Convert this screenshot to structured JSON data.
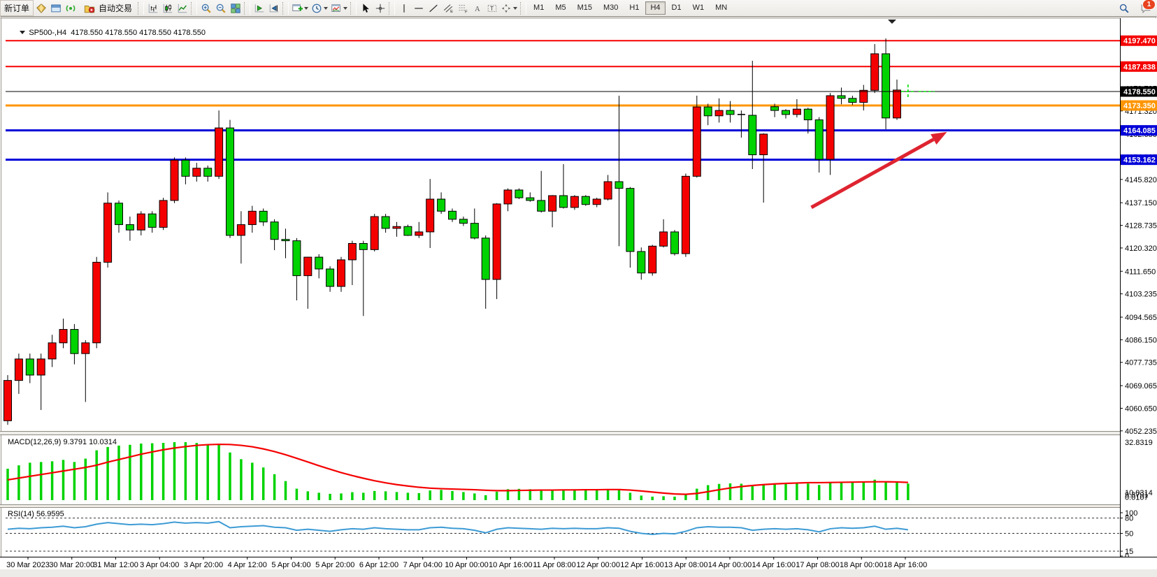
{
  "toolbar": {
    "new_order": "新订单",
    "auto_trading": "自动交易",
    "timeframes": [
      "M1",
      "M5",
      "M15",
      "M30",
      "H1",
      "H4",
      "D1",
      "W1",
      "MN"
    ],
    "active_timeframe": "H4",
    "notification_badge": "1",
    "icon_names": [
      "trade-watch-icon",
      "terminal-icon",
      "signal-icon",
      "chart-bars-icon",
      "chart-candles-icon",
      "chart-line-icon",
      "zoom-in-icon",
      "zoom-out-icon",
      "tile-windows-icon",
      "auto-scroll-icon",
      "chart-shift-icon",
      "new-chart-dropdown",
      "periods-dropdown",
      "indicators-dropdown",
      "cursor-icon",
      "crosshair-icon",
      "vertical-line-icon",
      "horizontal-line-icon",
      "trendline-icon",
      "channel-icon",
      "fibonacci-icon",
      "text-icon",
      "label-icon",
      "shapes-dropdown",
      "search-icon",
      "chat-icon"
    ]
  },
  "chart": {
    "symbol_ohlc_line": "SP500-,H4  4178.550 4178.550 4178.550 4178.550",
    "axis_labels": [
      "4196.565",
      "4188.150",
      "4179.735",
      "4171.320",
      "4162.650",
      "4154.235",
      "4145.820",
      "4137.150",
      "4128.735",
      "4120.320",
      "4111.650",
      "4103.235",
      "4094.565",
      "4086.150",
      "4077.735",
      "4069.065",
      "4060.650",
      "4052.235"
    ],
    "price_badges": [
      {
        "text": "4197.470",
        "price": 4197.47,
        "color": "#f50000"
      },
      {
        "text": "4187.838",
        "price": 4187.838,
        "color": "#f50000"
      },
      {
        "text": "4178.550",
        "price": 4178.55,
        "color": "#000000"
      },
      {
        "text": "4173.350",
        "price": 4173.35,
        "color": "#ff9500"
      },
      {
        "text": "4164.085",
        "price": 4164.085,
        "color": "#0000d8"
      },
      {
        "text": "4153.162",
        "price": 4153.162,
        "color": "#0000d8"
      }
    ]
  },
  "chart_data": {
    "type": "candlestick",
    "symbol": "SP500-",
    "timeframe": "H4",
    "color_convention": "red = bullish, green = bearish",
    "ylim": [
      4048,
      4205
    ],
    "x_labels": [
      "30 Mar 2023",
      "30 Mar 20:00",
      "31 Mar 12:00",
      "3 Apr 04:00",
      "3 Apr 20:00",
      "4 Apr 12:00",
      "5 Apr 04:00",
      "5 Apr 20:00",
      "6 Apr 12:00",
      "7 Apr 04:00",
      "10 Apr 00:00",
      "10 Apr 16:00",
      "11 Apr 08:00",
      "12 Apr 00:00",
      "12 Apr 16:00",
      "13 Apr 08:00",
      "14 Apr 00:00",
      "14 Apr 16:00",
      "17 Apr 08:00",
      "18 Apr 00:00",
      "18 Apr 16:00"
    ],
    "candles_ohlc": [
      [
        4056,
        4073,
        4054.5,
        4071
      ],
      [
        4071,
        4081,
        4066,
        4079
      ],
      [
        4079,
        4081,
        4070,
        4073
      ],
      [
        4073,
        4081,
        4060,
        4079
      ],
      [
        4079,
        4088,
        4076,
        4085
      ],
      [
        4085,
        4094,
        4083,
        4090
      ],
      [
        4090,
        4092,
        4077,
        4081
      ],
      [
        4081,
        4086,
        4063,
        4085
      ],
      [
        4085,
        4117,
        4083,
        4115
      ],
      [
        4115,
        4141,
        4113,
        4137
      ],
      [
        4137,
        4138,
        4126,
        4129
      ],
      [
        4129,
        4132,
        4123,
        4127
      ],
      [
        4127,
        4134,
        4125,
        4133
      ],
      [
        4133,
        4134,
        4126,
        4128
      ],
      [
        4128,
        4139,
        4127,
        4138
      ],
      [
        4138,
        4154,
        4137,
        4153
      ],
      [
        4153,
        4154,
        4144,
        4147
      ],
      [
        4147,
        4152,
        4145,
        4150
      ],
      [
        4150,
        4151,
        4145,
        4147
      ],
      [
        4147,
        4171.5,
        4146,
        4165
      ],
      [
        4165,
        4168,
        4124,
        4125
      ],
      [
        4125,
        4134,
        4114.5,
        4129
      ],
      [
        4129,
        4136,
        4126,
        4134
      ],
      [
        4134,
        4135,
        4128.5,
        4130
      ],
      [
        4130,
        4131,
        4119.5,
        4123.5
      ],
      [
        4123.5,
        4127.5,
        4116.5,
        4123
      ],
      [
        4123,
        4124,
        4100.8,
        4110
      ],
      [
        4110,
        4117,
        4097.7,
        4116.9
      ],
      [
        4116.9,
        4118,
        4109,
        4112.5
      ],
      [
        4112.5,
        4113.5,
        4104,
        4106
      ],
      [
        4106,
        4117,
        4104,
        4115.9
      ],
      [
        4115.9,
        4123,
        4106.5,
        4122
      ],
      [
        4122,
        4123,
        4095,
        4119.7
      ],
      [
        4119.7,
        4133,
        4119,
        4132
      ],
      [
        4132,
        4133,
        4126,
        4127.6
      ],
      [
        4127.6,
        4130,
        4124.5,
        4128.3
      ],
      [
        4128.3,
        4129,
        4124.8,
        4125
      ],
      [
        4125,
        4130,
        4124,
        4126.3
      ],
      [
        4126.3,
        4146,
        4120.3,
        4138.5
      ],
      [
        4138.5,
        4141,
        4133,
        4134
      ],
      [
        4134,
        4135,
        4130,
        4131
      ],
      [
        4131,
        4132,
        4128.5,
        4129.5
      ],
      [
        4129.5,
        4135,
        4123.5,
        4124
      ],
      [
        4124,
        4125,
        4097.7,
        4108.6
      ],
      [
        4108.6,
        4137,
        4101.3,
        4136.7
      ],
      [
        4136.7,
        4142.5,
        4134,
        4141.9
      ],
      [
        4141.9,
        4142.5,
        4138.5,
        4139
      ],
      [
        4139,
        4141,
        4137.5,
        4138
      ],
      [
        4138,
        4149,
        4133.5,
        4134
      ],
      [
        4134,
        4140,
        4128,
        4139.8
      ],
      [
        4139.8,
        4151.5,
        4135,
        4135.4
      ],
      [
        4135.4,
        4140,
        4134.5,
        4139.5
      ],
      [
        4139.5,
        4140,
        4136,
        4136.5
      ],
      [
        4136.5,
        4139,
        4135.5,
        4138.5
      ],
      [
        4138.5,
        4147.5,
        4138,
        4145
      ],
      [
        4145,
        4177,
        4121,
        4142.5
      ],
      [
        4142.5,
        4143,
        4113,
        4119
      ],
      [
        4119,
        4120.5,
        4108.5,
        4111
      ],
      [
        4111,
        4121.5,
        4110,
        4121
      ],
      [
        4121,
        4131,
        4120.5,
        4126.3
      ],
      [
        4126.3,
        4127,
        4117.5,
        4118.2
      ],
      [
        4118.2,
        4148,
        4117,
        4147
      ],
      [
        4147,
        4177,
        4146.5,
        4172.8
      ],
      [
        4172.8,
        4174,
        4166,
        4169.5
      ],
      [
        4169.5,
        4176,
        4167,
        4171.5
      ],
      [
        4171.5,
        4175,
        4167,
        4170
      ],
      [
        4170,
        4171.5,
        4161.4,
        4169.7
      ],
      [
        4169.7,
        4190,
        4149.7,
        4155
      ],
      [
        4155,
        4163,
        4137.2,
        4162.7
      ],
      [
        4172.9,
        4174,
        4169,
        4171.5
      ],
      [
        4171.5,
        4172,
        4168.5,
        4170
      ],
      [
        4170,
        4175.7,
        4168.9,
        4172
      ],
      [
        4172,
        4172.5,
        4162.9,
        4168
      ],
      [
        4168,
        4169,
        4148.4,
        4153.3
      ],
      [
        4153.3,
        4178,
        4147.5,
        4177
      ],
      [
        4177,
        4180,
        4173.8,
        4176
      ],
      [
        4176,
        4177,
        4173.5,
        4174.5
      ],
      [
        4174.5,
        4181,
        4171.5,
        4179
      ],
      [
        4179,
        4196.2,
        4178,
        4192.6
      ],
      [
        4192.6,
        4198.3,
        4164.5,
        4168.7
      ],
      [
        4168.7,
        4183,
        4168,
        4179.1
      ],
      [
        4178.5,
        4179.5,
        4177.5,
        4178.55
      ]
    ],
    "hlines": [
      {
        "price": 4197.47,
        "color": "#f50000",
        "width": 2
      },
      {
        "price": 4187.838,
        "color": "#f50000",
        "width": 2
      },
      {
        "price": 4178.55,
        "color": "#000000",
        "width": 1
      },
      {
        "price": 4173.35,
        "color": "#ff9500",
        "width": 3
      },
      {
        "price": 4164.085,
        "color": "#0000d8",
        "width": 3
      },
      {
        "price": 4153.162,
        "color": "#0000d8",
        "width": 3
      }
    ],
    "trend_arrow": {
      "from": {
        "bar": 72.3,
        "price": 4135.4
      },
      "to": {
        "bar": 84.5,
        "price": 4163.5
      },
      "color": "#de2430"
    },
    "current_bar_marker": {
      "bar": 81,
      "price": 4178.55,
      "color": "#00dd00"
    },
    "indicators": {
      "macd": {
        "label_text": "MACD(12,26,9) 9.3791 10.0314",
        "params": "12,26,9",
        "main_value": "9.3791",
        "signal_value": "10.0314",
        "axis_max_label": "32.8319",
        "axis_bottom_labels": [
          "10.0314",
          "9.3791",
          "0.0107"
        ],
        "histogram_color": "#00d300",
        "signal_color": "#f50000",
        "histogram": [
          17.8,
          19.7,
          21.2,
          21.6,
          22.0,
          22.8,
          21.6,
          23.5,
          28.2,
          30.1,
          30.9,
          31.3,
          32.0,
          32.2,
          32.4,
          32.8,
          32.8,
          32.4,
          31.5,
          32.0,
          27.0,
          23.2,
          21.2,
          18.5,
          14.7,
          10.8,
          6.5,
          5.0,
          4.2,
          3.6,
          3.8,
          4.5,
          4.2,
          5.2,
          5.0,
          4.6,
          4.2,
          4.0,
          5.5,
          5.8,
          5.2,
          4.6,
          3.8,
          2.8,
          4.8,
          6.2,
          6.4,
          6.2,
          6.0,
          5.8,
          6.0,
          6.2,
          6.0,
          5.8,
          6.2,
          6.0,
          4.2,
          2.6,
          2.0,
          2.2,
          2.0,
          3.2,
          6.5,
          8.5,
          9.2,
          9.5,
          9.3,
          8.6,
          8.8,
          9.4,
          9.6,
          9.8,
          9.4,
          8.6,
          9.8,
          10.4,
          10.5,
          10.6,
          11.6,
          10.4,
          10.1,
          9.38
        ],
        "signal": [
          11.5,
          12.5,
          13.5,
          14.5,
          15.5,
          16.5,
          17.5,
          18.5,
          19.8,
          21.5,
          23.0,
          24.5,
          26.0,
          27.3,
          28.5,
          29.5,
          30.3,
          31.0,
          31.4,
          31.6,
          31.5,
          31.0,
          30.2,
          29.0,
          27.5,
          25.7,
          23.7,
          21.6,
          19.5,
          17.5,
          15.6,
          13.9,
          12.4,
          11.0,
          9.8,
          8.8,
          8.0,
          7.3,
          6.8,
          6.5,
          6.3,
          6.1,
          5.9,
          5.6,
          5.4,
          5.4,
          5.5,
          5.6,
          5.7,
          5.7,
          5.8,
          5.8,
          5.9,
          5.9,
          6.0,
          6.0,
          5.7,
          5.2,
          4.6,
          4.0,
          3.5,
          3.3,
          3.8,
          4.8,
          5.9,
          6.9,
          7.7,
          8.3,
          8.8,
          9.2,
          9.5,
          9.7,
          9.9,
          9.9,
          10.0,
          10.1,
          10.2,
          10.3,
          10.4,
          10.4,
          10.3,
          10.03
        ]
      },
      "rsi": {
        "label_text": "RSI(14) 56.9595",
        "period": "14",
        "value": "56.9595",
        "line_color": "#3d9bd5",
        "levels": [
          80,
          50,
          15
        ],
        "axis_labels": [
          "100",
          "80",
          "50",
          "15",
          "0"
        ],
        "values": [
          58,
          60,
          59,
          61,
          62,
          64,
          61,
          63,
          68,
          71,
          69,
          67,
          68,
          67,
          69,
          72,
          70,
          71,
          70,
          73,
          61,
          63,
          64,
          65,
          62,
          61,
          56,
          58,
          56,
          54,
          57,
          59,
          58,
          61,
          59,
          58,
          57,
          57,
          61,
          62,
          60,
          59,
          56,
          51,
          58,
          61,
          60,
          59,
          58,
          60,
          59,
          60,
          59,
          59,
          61,
          60,
          54,
          50,
          48,
          50,
          49,
          54,
          61,
          63,
          62,
          62,
          61,
          56,
          58,
          59,
          58,
          59,
          57,
          53,
          59,
          61,
          60,
          61,
          64,
          58,
          60,
          56.96
        ]
      }
    }
  }
}
